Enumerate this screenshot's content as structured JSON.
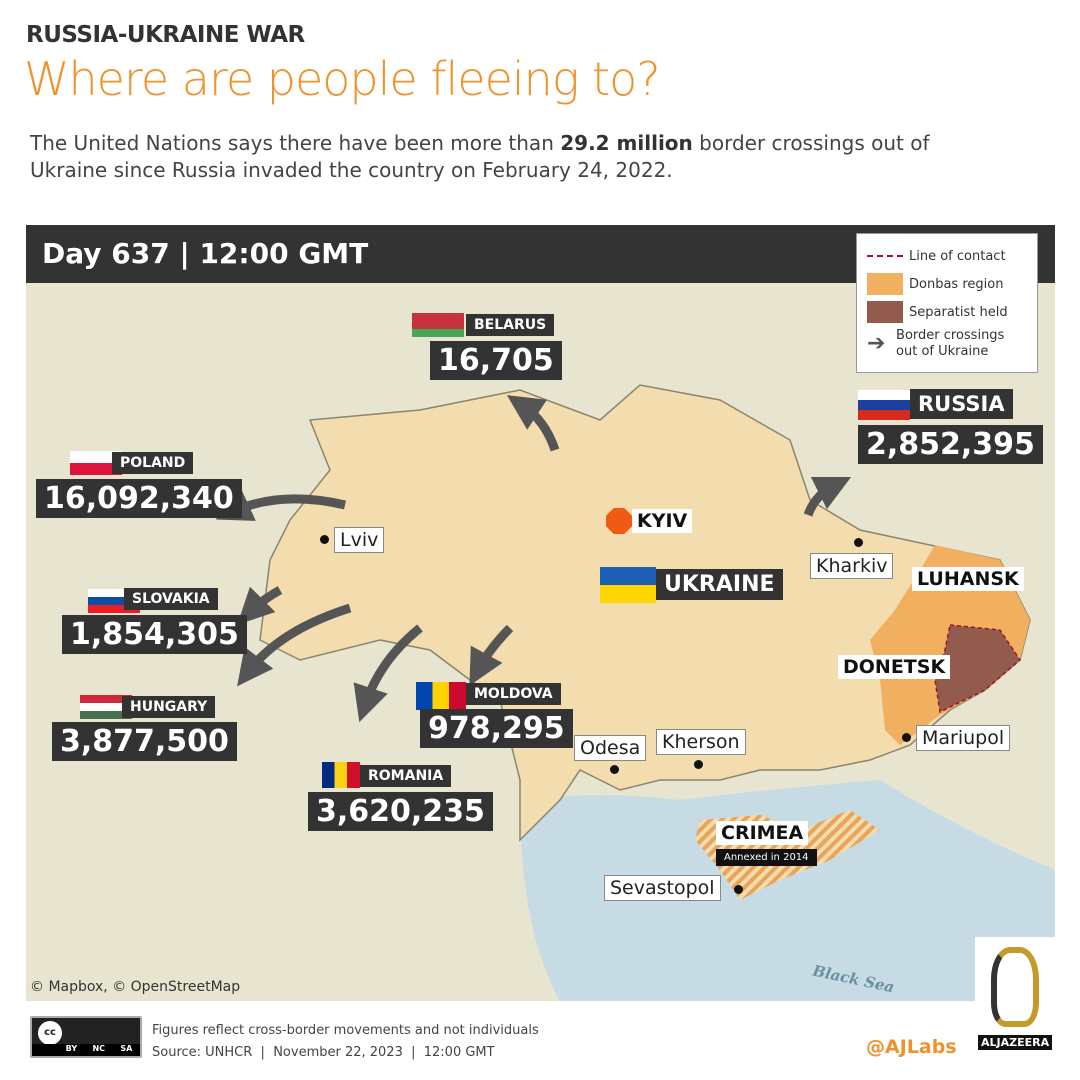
{
  "header": {
    "kicker": "RUSSIA-UKRAINE WAR",
    "title": "Where are people fleeing to?",
    "intro_pre": "The United Nations says there have been more than ",
    "intro_bold": "29.2 million",
    "intro_post": " border crossings out of Ukraine since Russia invaded the country on February 24, 2022."
  },
  "map": {
    "day_label": "Day 637 |  12:00 GMT",
    "legend": [
      {
        "label": "Line of contact",
        "color": "#a0161b"
      },
      {
        "label": "Donbas region",
        "color": "#f0b060"
      },
      {
        "label": "Separatist held",
        "color": "#935a4e"
      },
      {
        "label": "Border crossings out of Ukraine",
        "color": "#555555"
      }
    ],
    "countries": [
      {
        "name": "BELARUS",
        "value": "16,705"
      },
      {
        "name": "RUSSIA",
        "value": "2,852,395"
      },
      {
        "name": "POLAND",
        "value": "16,092,340"
      },
      {
        "name": "SLOVAKIA",
        "value": "1,854,305"
      },
      {
        "name": "HUNGARY",
        "value": "3,877,500"
      },
      {
        "name": "MOLDOVA",
        "value": "978,295"
      },
      {
        "name": "ROMANIA",
        "value": "3,620,235"
      }
    ],
    "ukraine_label": "UKRAINE",
    "capital": "KYIV",
    "cities": [
      "Lviv",
      "Kharkiv",
      "Odesa",
      "Kherson",
      "Mariupol",
      "Sevastopol"
    ],
    "regions": {
      "luhansk": "LUHANSK",
      "donetsk": "DONETSK",
      "crimea": "CRIMEA",
      "crimea_note": "Annexed in 2014"
    },
    "sea": "Black Sea",
    "credit": "© Mapbox, © OpenStreetMap",
    "colors": {
      "ukraine": "#f3dcae",
      "donbas": "#f0b060",
      "separatist": "#935a4e",
      "arrow": "#555555",
      "accent": "#f0922b"
    }
  },
  "footer": {
    "note": "Figures reflect cross-border movements and not individuals",
    "source": "Source: UNHCR  |  November 22, 2023  |  12:00 GMT",
    "handle": "@AJLabs",
    "license": [
      "BY",
      "NC",
      "SA"
    ],
    "brand": "ALJAZEERA"
  }
}
